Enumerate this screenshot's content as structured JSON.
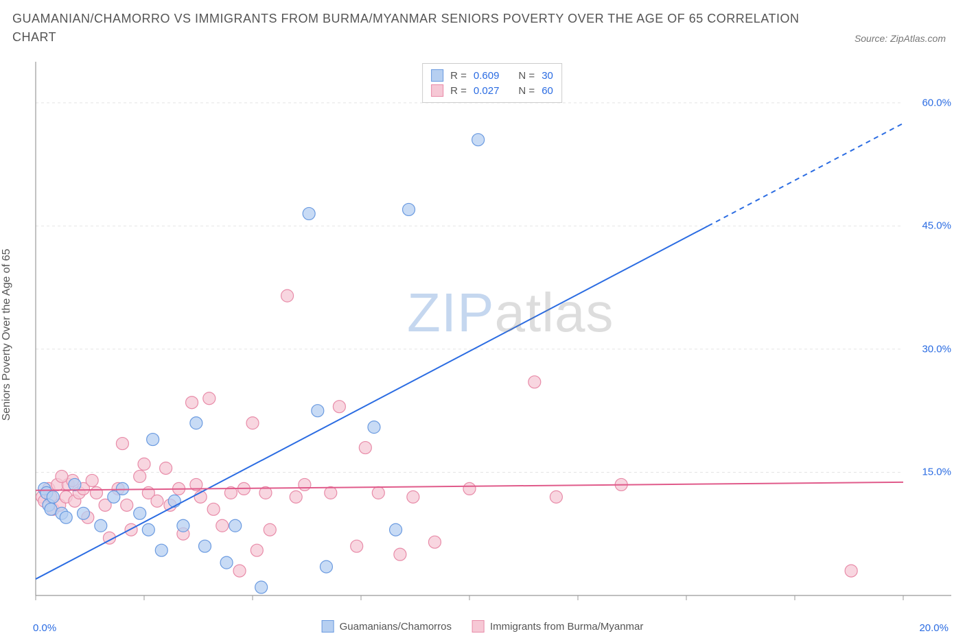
{
  "title": "GUAMANIAN/CHAMORRO VS IMMIGRANTS FROM BURMA/MYANMAR SENIORS POVERTY OVER THE AGE OF 65 CORRELATION CHART",
  "source": "Source: ZipAtlas.com",
  "ylabel": "Seniors Poverty Over the Age of 65",
  "watermark_a": "ZIP",
  "watermark_b": "atlas",
  "chart": {
    "type": "scatter",
    "background_color": "#ffffff",
    "grid_color": "#e4e4e4",
    "axis_color": "#999999",
    "xlim": [
      0,
      20
    ],
    "ylim": [
      0,
      65
    ],
    "x_ticks": [
      0,
      2.5,
      5,
      7.5,
      10,
      12.5,
      15,
      17.5,
      20
    ],
    "x_tick_labels": [
      "0.0%",
      "",
      "",
      "",
      "",
      "",
      "",
      "",
      "20.0%"
    ],
    "y_ticks": [
      15,
      30,
      45,
      60
    ],
    "y_tick_labels": [
      "15.0%",
      "30.0%",
      "45.0%",
      "60.0%"
    ],
    "title_fontsize": 18,
    "label_fontsize": 16,
    "tick_fontsize": 15,
    "tick_color": "#2b6ce2",
    "marker_radius": 9,
    "marker_stroke_width": 1.2,
    "line_width": 2,
    "series": [
      {
        "name": "Guamanians/Chamorros",
        "color_fill": "#b6cff1",
        "color_stroke": "#6a9ae0",
        "line_color": "#2b6ce2",
        "R": "0.609",
        "N": "30",
        "trend": {
          "x1": 0,
          "y1": 2.0,
          "x2": 15.5,
          "y2": 45.0,
          "dash_from_x": 15.5,
          "dash_to_x": 20,
          "dash_to_y": 57.5
        },
        "points": [
          [
            0.2,
            13.0
          ],
          [
            0.25,
            12.5
          ],
          [
            0.3,
            11.0
          ],
          [
            0.35,
            10.5
          ],
          [
            0.4,
            12.0
          ],
          [
            0.6,
            10.0
          ],
          [
            0.7,
            9.5
          ],
          [
            0.9,
            13.5
          ],
          [
            1.1,
            10.0
          ],
          [
            1.5,
            8.5
          ],
          [
            1.8,
            12.0
          ],
          [
            2.0,
            13.0
          ],
          [
            2.4,
            10.0
          ],
          [
            2.7,
            19.0
          ],
          [
            2.6,
            8.0
          ],
          [
            2.9,
            5.5
          ],
          [
            3.2,
            11.5
          ],
          [
            3.4,
            8.5
          ],
          [
            3.7,
            21.0
          ],
          [
            3.9,
            6.0
          ],
          [
            4.4,
            4.0
          ],
          [
            4.6,
            8.5
          ],
          [
            5.2,
            1.0
          ],
          [
            6.5,
            22.5
          ],
          [
            6.3,
            46.5
          ],
          [
            6.7,
            3.5
          ],
          [
            7.8,
            20.5
          ],
          [
            8.3,
            8.0
          ],
          [
            8.6,
            47.0
          ],
          [
            10.2,
            55.5
          ]
        ]
      },
      {
        "name": "Immigrants from Burma/Myanmar",
        "color_fill": "#f6c8d5",
        "color_stroke": "#e88ba8",
        "line_color": "#e05a8a",
        "R": "0.027",
        "N": "60",
        "trend": {
          "x1": 0,
          "y1": 12.8,
          "x2": 20,
          "y2": 13.8
        },
        "points": [
          [
            0.15,
            12.0
          ],
          [
            0.2,
            11.5
          ],
          [
            0.3,
            13.0
          ],
          [
            0.35,
            12.0
          ],
          [
            0.4,
            10.5
          ],
          [
            0.5,
            13.5
          ],
          [
            0.55,
            11.0
          ],
          [
            0.7,
            12.0
          ],
          [
            0.75,
            13.5
          ],
          [
            0.85,
            14.0
          ],
          [
            0.9,
            11.5
          ],
          [
            1.0,
            12.5
          ],
          [
            1.1,
            13.0
          ],
          [
            1.3,
            14.0
          ],
          [
            1.4,
            12.5
          ],
          [
            1.6,
            11.0
          ],
          [
            1.7,
            7.0
          ],
          [
            1.9,
            13.0
          ],
          [
            2.0,
            18.5
          ],
          [
            2.1,
            11.0
          ],
          [
            2.2,
            8.0
          ],
          [
            2.4,
            14.5
          ],
          [
            2.5,
            16.0
          ],
          [
            2.6,
            12.5
          ],
          [
            2.8,
            11.5
          ],
          [
            3.0,
            15.5
          ],
          [
            3.1,
            11.0
          ],
          [
            3.3,
            13.0
          ],
          [
            3.4,
            7.5
          ],
          [
            3.6,
            23.5
          ],
          [
            3.7,
            13.5
          ],
          [
            3.8,
            12.0
          ],
          [
            4.0,
            24.0
          ],
          [
            4.1,
            10.5
          ],
          [
            4.3,
            8.5
          ],
          [
            4.5,
            12.5
          ],
          [
            4.7,
            3.0
          ],
          [
            4.8,
            13.0
          ],
          [
            5.0,
            21.0
          ],
          [
            5.1,
            5.5
          ],
          [
            5.3,
            12.5
          ],
          [
            5.4,
            8.0
          ],
          [
            5.8,
            36.5
          ],
          [
            6.0,
            12.0
          ],
          [
            6.2,
            13.5
          ],
          [
            6.8,
            12.5
          ],
          [
            7.0,
            23.0
          ],
          [
            7.4,
            6.0
          ],
          [
            7.6,
            18.0
          ],
          [
            7.9,
            12.5
          ],
          [
            8.4,
            5.0
          ],
          [
            8.7,
            12.0
          ],
          [
            9.2,
            6.5
          ],
          [
            10.0,
            13.0
          ],
          [
            11.5,
            26.0
          ],
          [
            12.0,
            12.0
          ],
          [
            13.5,
            13.5
          ],
          [
            18.8,
            3.0
          ],
          [
            0.6,
            14.5
          ],
          [
            1.2,
            9.5
          ]
        ]
      }
    ]
  },
  "legend_bottom": [
    {
      "label": "Guamanians/Chamorros",
      "fill": "#b6cff1",
      "stroke": "#6a9ae0"
    },
    {
      "label": "Immigrants from Burma/Myanmar",
      "fill": "#f6c8d5",
      "stroke": "#e88ba8"
    }
  ],
  "legend_top": [
    {
      "fill": "#b6cff1",
      "stroke": "#6a9ae0",
      "R_label": "R =",
      "R": "0.609",
      "N_label": "N =",
      "N": "30"
    },
    {
      "fill": "#f6c8d5",
      "stroke": "#e88ba8",
      "R_label": "R =",
      "R": "0.027",
      "N_label": "N =",
      "N": "60"
    }
  ]
}
